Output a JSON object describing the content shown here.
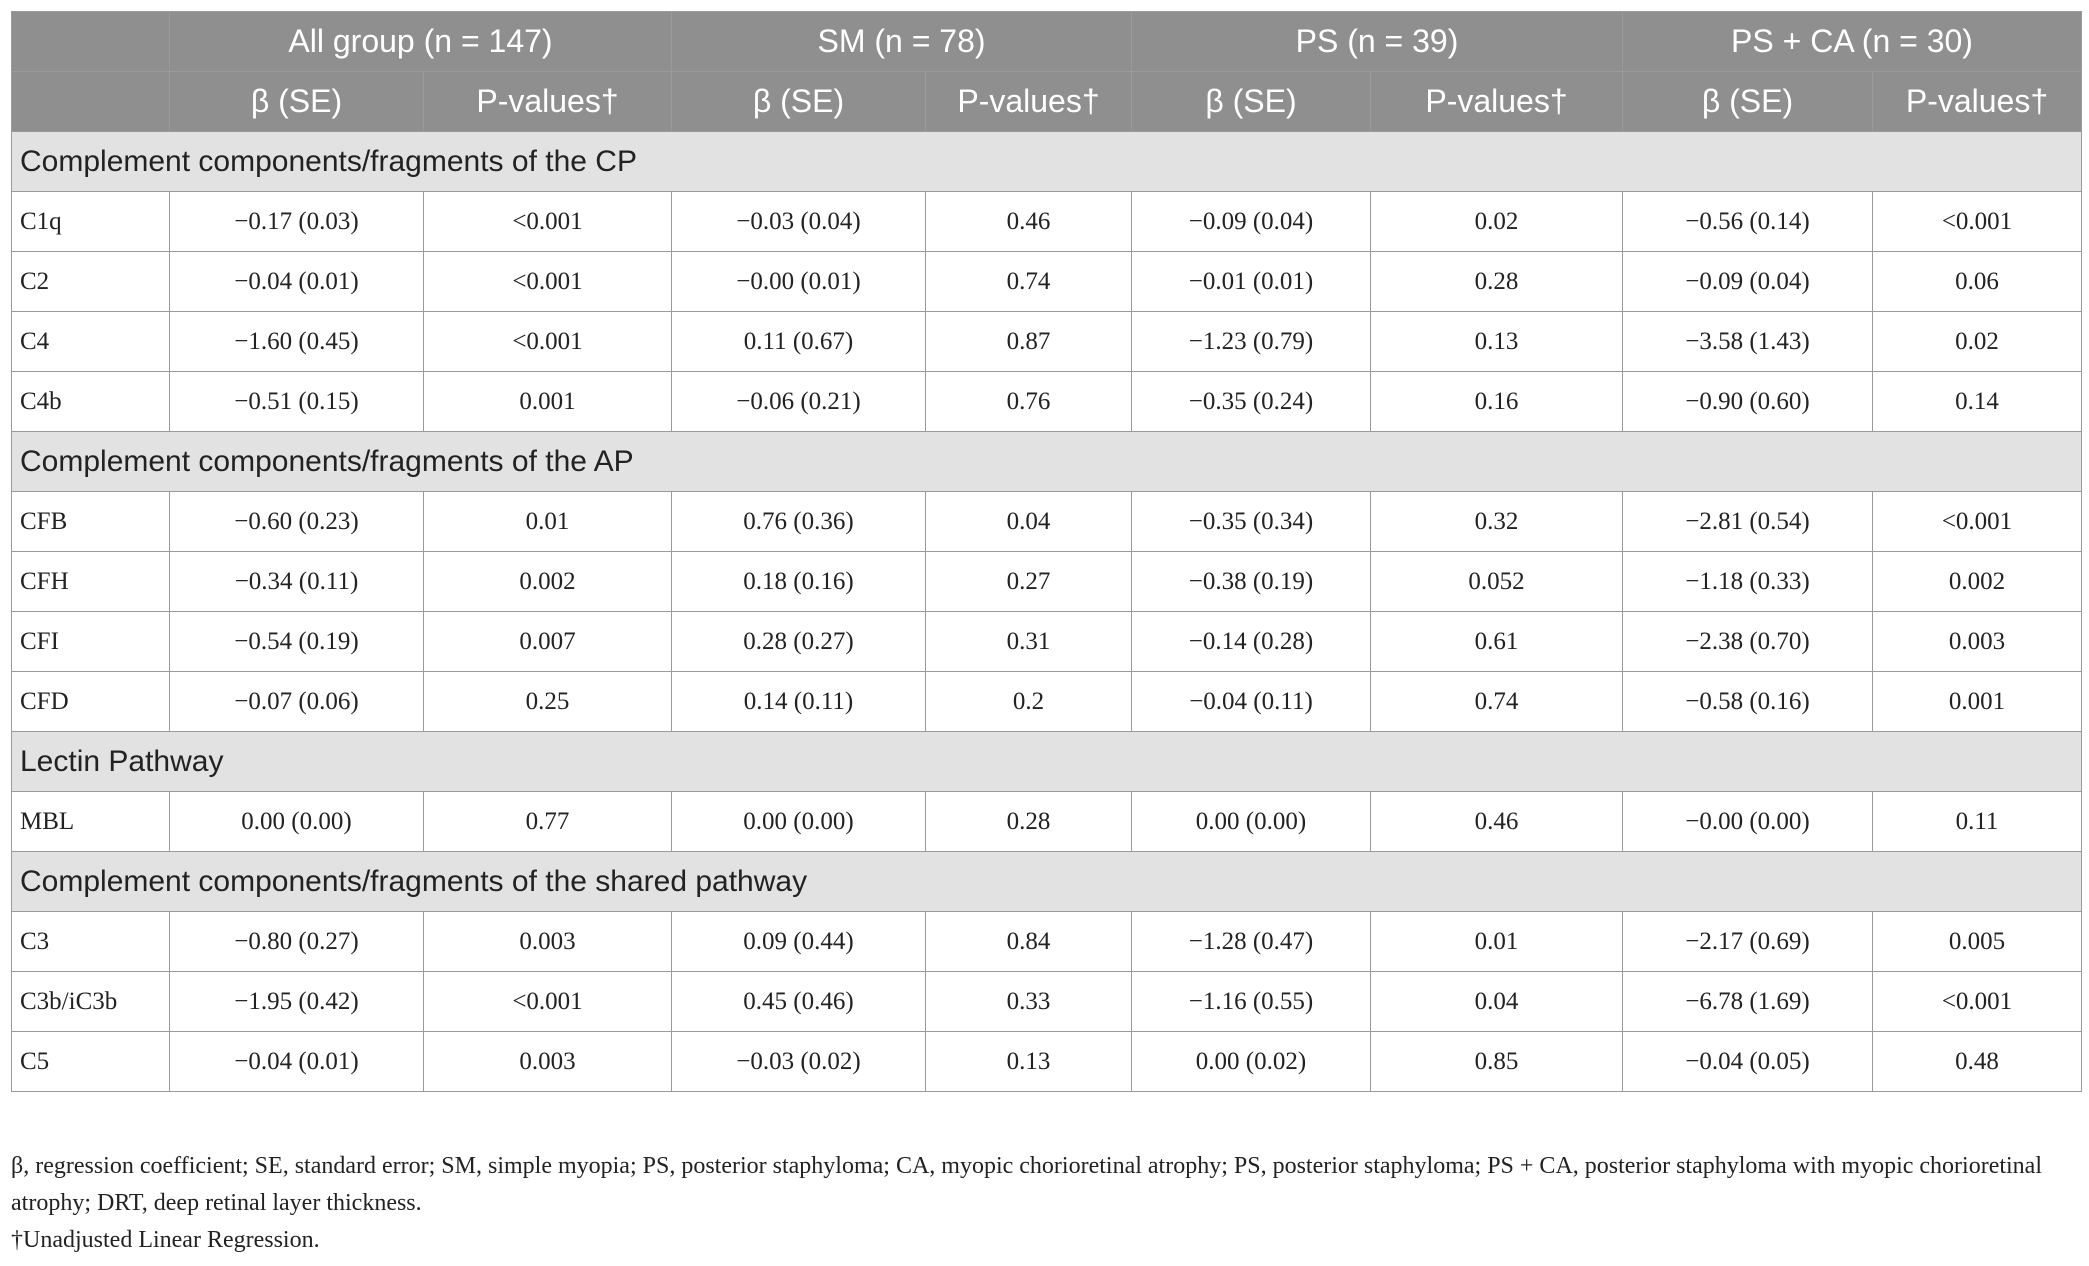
{
  "header": {
    "groups": [
      "All group (n = 147)",
      "SM (n = 78)",
      "PS (n = 39)",
      "PS + CA (n = 30)"
    ],
    "subheaders": [
      [
        "β (SE)",
        "P-values†"
      ],
      [
        "β (SE)",
        "P-values†"
      ],
      [
        "β (SE)",
        "P-values†"
      ],
      [
        "β (SE)",
        "P-values†"
      ]
    ]
  },
  "sections": [
    {
      "title": "Complement components/fragments of the CP",
      "rows": [
        [
          "C1q",
          "−0.17 (0.03)",
          "<0.001",
          "−0.03 (0.04)",
          "0.46",
          "−0.09 (0.04)",
          "0.02",
          "−0.56 (0.14)",
          "<0.001"
        ],
        [
          "C2",
          "−0.04 (0.01)",
          "<0.001",
          "−0.00 (0.01)",
          "0.74",
          "−0.01 (0.01)",
          "0.28",
          "−0.09 (0.04)",
          "0.06"
        ],
        [
          "C4",
          "−1.60 (0.45)",
          "<0.001",
          "0.11 (0.67)",
          "0.87",
          "−1.23 (0.79)",
          "0.13",
          "−3.58 (1.43)",
          "0.02"
        ],
        [
          "C4b",
          "−0.51 (0.15)",
          "0.001",
          "−0.06 (0.21)",
          "0.76",
          "−0.35 (0.24)",
          "0.16",
          "−0.90 (0.60)",
          "0.14"
        ]
      ]
    },
    {
      "title": "Complement components/fragments of the AP",
      "rows": [
        [
          "CFB",
          "−0.60 (0.23)",
          "0.01",
          "0.76 (0.36)",
          "0.04",
          "−0.35 (0.34)",
          "0.32",
          "−2.81 (0.54)",
          "<0.001"
        ],
        [
          "CFH",
          "−0.34 (0.11)",
          "0.002",
          "0.18 (0.16)",
          "0.27",
          "−0.38 (0.19)",
          "0.052",
          "−1.18 (0.33)",
          "0.002"
        ],
        [
          "CFI",
          "−0.54 (0.19)",
          "0.007",
          "0.28 (0.27)",
          "0.31",
          "−0.14 (0.28)",
          "0.61",
          "−2.38 (0.70)",
          "0.003"
        ],
        [
          "CFD",
          "−0.07 (0.06)",
          "0.25",
          "0.14 (0.11)",
          "0.2",
          "−0.04 (0.11)",
          "0.74",
          "−0.58 (0.16)",
          "0.001"
        ]
      ]
    },
    {
      "title": "Lectin Pathway",
      "rows": [
        [
          "MBL",
          "0.00 (0.00)",
          "0.77",
          "0.00 (0.00)",
          "0.28",
          "0.00 (0.00)",
          "0.46",
          "−0.00 (0.00)",
          "0.11"
        ]
      ]
    },
    {
      "title": "Complement components/fragments of the shared pathway",
      "rows": [
        [
          "C3",
          "−0.80 (0.27)",
          "0.003",
          "0.09 (0.44)",
          "0.84",
          "−1.28 (0.47)",
          "0.01",
          "−2.17 (0.69)",
          "0.005"
        ],
        [
          "C3b/iC3b",
          "−1.95 (0.42)",
          "<0.001",
          "0.45 (0.46)",
          "0.33",
          "−1.16 (0.55)",
          "0.04",
          "−6.78 (1.69)",
          "<0.001"
        ],
        [
          "C5",
          "−0.04 (0.01)",
          "0.003",
          "−0.03 (0.02)",
          "0.13",
          "0.00 (0.02)",
          "0.85",
          "−0.04 (0.05)",
          "0.48"
        ]
      ]
    }
  ],
  "footnotes": [
    "β, regression coefficient; SE, standard error; SM, simple myopia; PS, posterior staphyloma; CA, myopic chorioretinal atrophy; PS, posterior staphyloma; PS + CA, posterior staphyloma with myopic chorioretinal atrophy; DRT, deep retinal layer thickness.",
    "†Unadjusted Linear Regression."
  ]
}
